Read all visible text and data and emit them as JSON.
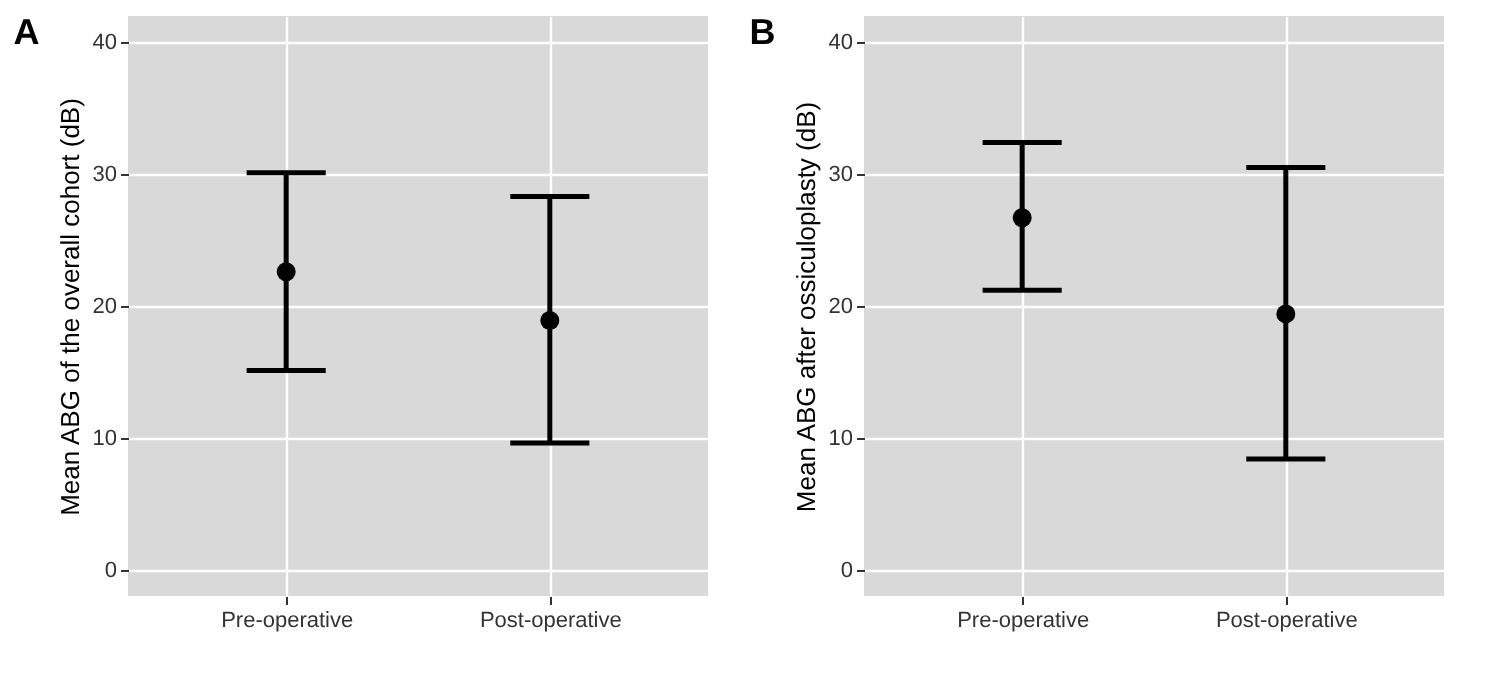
{
  "chart_data": [
    {
      "type": "scatter",
      "title": "A",
      "ylabel": "Mean ABG of the overall cohort (dB)",
      "categories": [
        "Pre-operative",
        "Post-operative"
      ],
      "values": [
        22.6,
        18.9
      ],
      "errors": [
        [
          15.1,
          30.1
        ],
        [
          9.6,
          28.3
        ]
      ],
      "color": "#000000",
      "marker": "circle",
      "ylim": [
        -2,
        42
      ],
      "yticks": [
        0,
        10,
        20,
        30,
        40
      ],
      "grid": true
    },
    {
      "type": "scatter",
      "title": "B",
      "ylabel": "Mean ABG after ossiculoplasty (dB)",
      "categories": [
        "Pre-operative",
        "Post-operative"
      ],
      "values": [
        26.7,
        19.4
      ],
      "errors": [
        [
          21.2,
          32.4
        ],
        [
          8.4,
          30.5
        ]
      ],
      "color": "#000000",
      "marker": "circle",
      "ylim": [
        -2,
        42
      ],
      "yticks": [
        0,
        10,
        20,
        30,
        40
      ],
      "grid": true
    }
  ]
}
